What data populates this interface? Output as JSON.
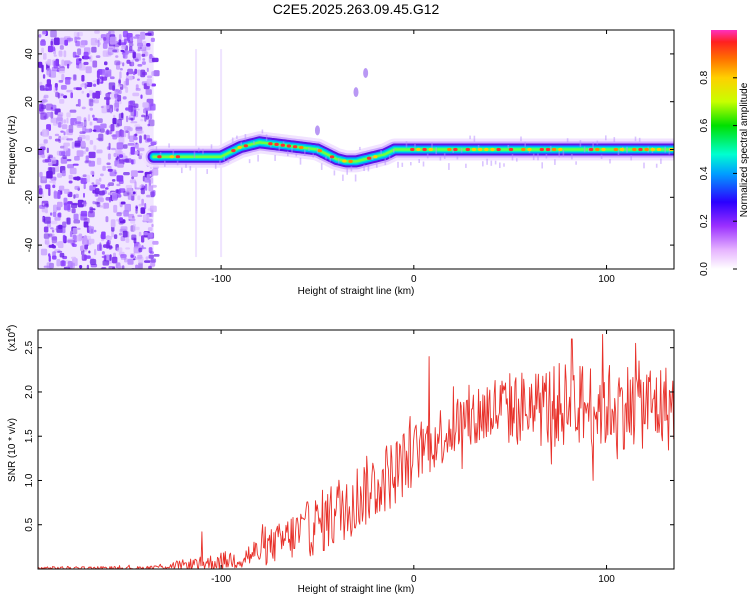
{
  "title": "C2E5.2025.263.09.45.G12",
  "chart_data": [
    {
      "type": "heatmap",
      "name": "spectrogram",
      "xlabel": "Height of straight line (km)",
      "ylabel": "Frequency (Hz)",
      "xlim": [
        -195,
        135
      ],
      "ylim": [
        -50,
        50
      ],
      "xticks": [
        -100,
        0,
        100
      ],
      "xtick_labels": [
        "-100",
        "0",
        "100"
      ],
      "yticks": [
        -40,
        -20,
        0,
        20,
        40
      ],
      "ytick_labels": [
        "-40",
        "-20",
        "0",
        "20",
        "40"
      ],
      "noise_region_x": [
        -195,
        -135
      ],
      "ridge": {
        "x": [
          -135,
          -120,
          -100,
          -90,
          -80,
          -70,
          -60,
          -50,
          -45,
          -40,
          -35,
          -30,
          -25,
          -20,
          -15,
          -10,
          0,
          10,
          30,
          60,
          90,
          120,
          135
        ],
        "y": [
          -3,
          -3,
          -3,
          1,
          3,
          2,
          1,
          0,
          -2,
          -4,
          -5,
          -5,
          -4,
          -3,
          -2,
          0,
          0,
          0,
          0,
          0,
          0,
          0,
          0
        ]
      },
      "annotations": [
        {
          "x": -30,
          "y": 24,
          "note": "faint streak"
        },
        {
          "x": -25,
          "y": 32,
          "note": "faint streak"
        },
        {
          "x": -50,
          "y": 8,
          "note": "faint patch"
        }
      ],
      "colorbar": {
        "label": "Normalized spectral amplitude",
        "range": [
          0.0,
          1.0
        ],
        "ticks": [
          0.0,
          0.2,
          0.4,
          0.6,
          0.8
        ],
        "tick_labels": [
          "0.0",
          "0.2",
          "0.4",
          "0.6",
          "0.8"
        ]
      }
    },
    {
      "type": "line",
      "name": "snr",
      "xlabel": "Height of straight line (km)",
      "ylabel": "SNR (10 * v/v)",
      "y_multiplier_label": "(x10",
      "y_multiplier_exp": "4",
      "y_multiplier_close": ")",
      "xlim": [
        -195,
        135
      ],
      "ylim": [
        0,
        2.7
      ],
      "xticks": [
        -100,
        0,
        100
      ],
      "xtick_labels": [
        "-100",
        "0",
        "100"
      ],
      "yticks": [
        0.5,
        1.0,
        1.5,
        2.0,
        2.5
      ],
      "ytick_labels": [
        "0.5",
        "1.0",
        "1.5",
        "2.0",
        "2.5"
      ],
      "color": "#e8312a",
      "trend": {
        "x": [
          -195,
          -140,
          -130,
          -110,
          -90,
          -80,
          -70,
          -60,
          -50,
          -40,
          -30,
          -20,
          -10,
          0,
          10,
          20,
          30,
          40,
          60,
          80,
          100,
          120,
          135
        ],
        "mean": [
          0.01,
          0.01,
          0.03,
          0.06,
          0.12,
          0.2,
          0.3,
          0.4,
          0.5,
          0.65,
          0.8,
          0.95,
          1.1,
          1.3,
          1.45,
          1.6,
          1.7,
          1.8,
          1.82,
          1.85,
          1.85,
          1.85,
          1.82
        ],
        "amp": [
          0.02,
          0.02,
          0.04,
          0.08,
          0.12,
          0.18,
          0.22,
          0.3,
          0.35,
          0.4,
          0.4,
          0.4,
          0.4,
          0.35,
          0.35,
          0.35,
          0.4,
          0.4,
          0.45,
          0.5,
          0.5,
          0.5,
          0.5
        ]
      },
      "peaks": [
        {
          "x": -110,
          "y": 0.42
        },
        {
          "x": 8,
          "y": 2.4
        },
        {
          "x": 82,
          "y": 2.6
        },
        {
          "x": 98,
          "y": 2.65
        },
        {
          "x": 115,
          "y": 2.55
        }
      ]
    }
  ]
}
